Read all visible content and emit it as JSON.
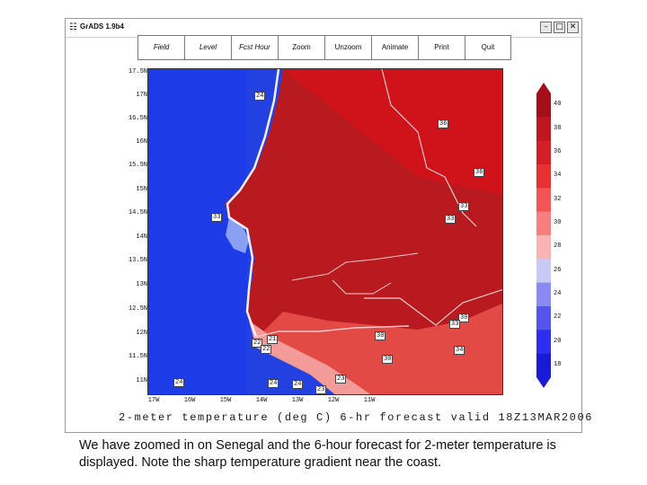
{
  "window": {
    "title": "GrADS 1.9b4",
    "controls": [
      "minimize-icon",
      "maximize-icon",
      "close-icon"
    ]
  },
  "toolbar": {
    "buttons": [
      "Field",
      "Level",
      "Fcst Hour",
      "Zoom",
      "Unzoom",
      "Animate",
      "Print",
      "Quit"
    ]
  },
  "map": {
    "y_ticks": [
      "17.5N",
      "17N",
      "16.5N",
      "16N",
      "15.5N",
      "15N",
      "14.5N",
      "14N",
      "13.5N",
      "13N",
      "12.5N",
      "12N",
      "11.5N",
      "11N"
    ],
    "x_ticks": [
      "17W",
      "16W",
      "15W",
      "14W",
      "13W",
      "12W",
      "11W"
    ],
    "title": "2-meter temperature (deg C) 6-hr forecast valid 18Z13MAR2006",
    "station_values": [
      "24",
      "36",
      "36",
      "33",
      "33",
      "33",
      "30",
      "30",
      "33",
      "30",
      "34",
      "22",
      "22",
      "21",
      "24",
      "24",
      "24",
      "23",
      "23"
    ]
  },
  "colorbar": {
    "labels": [
      "40",
      "38",
      "36",
      "34",
      "32",
      "30",
      "28",
      "26",
      "24",
      "22",
      "20",
      "18"
    ],
    "colors": [
      "#a3101b",
      "#be1722",
      "#d21f28",
      "#e63232",
      "#f25555",
      "#f77f7f",
      "#f9b3b3",
      "#c9c9f5",
      "#8a8af5",
      "#5555ee",
      "#2e2eee",
      "#1a1ad6"
    ]
  },
  "caption": "We have zoomed in on Senegal and the 6-hour forecast for 2-meter temperature is displayed. Note the sharp temperature gradient near the coast."
}
